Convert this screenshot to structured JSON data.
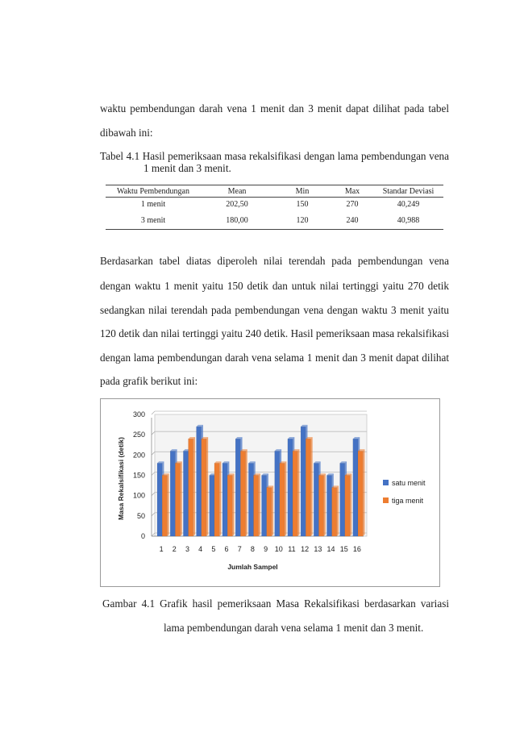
{
  "intro": {
    "line1": "waktu pembendungan darah vena 1 menit dan 3 menit dapat dilihat pada tabel",
    "line2": "dibawah ini:"
  },
  "table_caption": {
    "line1": "Tabel 4.1 Hasil pemeriksaan masa rekalsifikasi dengan lama pembendungan vena",
    "line2": "1 menit dan 3 menit."
  },
  "table": {
    "headers": [
      "Waktu Pembendungan",
      "Mean",
      "Min",
      "Max",
      "Standar Deviasi"
    ],
    "rows": [
      [
        "1 menit",
        "202,50",
        "150",
        "270",
        "40,249"
      ],
      [
        "3 menit",
        "180,00",
        "120",
        "240",
        "40,988"
      ]
    ]
  },
  "paragraph": [
    "Berdasarkan tabel diatas diperoleh nilai terendah pada pembendungan vena",
    "dengan waktu 1 menit yaitu 150 detik dan untuk nilai tertinggi yaitu 270 detik",
    "sedangkan nilai terendah pada pembendungan vena dengan waktu 3 menit yaitu",
    "120 detik dan nilai tertinggi yaitu 240 detik. Hasil pemeriksaan masa rekalsifikasi",
    "dengan lama pembendungan darah vena selama 1 menit dan 3 menit dapat dilihat",
    "pada grafik berikut ini:"
  ],
  "chart_data": {
    "type": "bar",
    "categories": [
      "1",
      "2",
      "3",
      "4",
      "5",
      "6",
      "7",
      "8",
      "9",
      "10",
      "11",
      "12",
      "13",
      "14",
      "15",
      "16"
    ],
    "series": [
      {
        "name": "satu menit",
        "color": "#4472C4",
        "values": [
          180,
          210,
          210,
          270,
          150,
          180,
          240,
          180,
          150,
          210,
          240,
          270,
          180,
          150,
          180,
          240
        ]
      },
      {
        "name": "tiga menit",
        "color": "#ED7D31",
        "values": [
          150,
          180,
          240,
          240,
          180,
          150,
          210,
          150,
          120,
          180,
          210,
          240,
          150,
          120,
          150,
          210
        ]
      }
    ],
    "xlabel": "Jumlah Sampel",
    "ylabel": "Masa Rekalsifikasi (detik)",
    "ylim": [
      0,
      300
    ],
    "yticks": [
      0,
      50,
      100,
      150,
      200,
      250,
      300
    ],
    "grid": true,
    "legend": "right"
  },
  "figure_caption": {
    "line1": "Gambar 4.1 Grafik hasil pemeriksaan Masa Rekalsifikasi berdasarkan variasi",
    "line2": "lama pembendungan darah vena selama 1 menit dan 3 menit."
  }
}
